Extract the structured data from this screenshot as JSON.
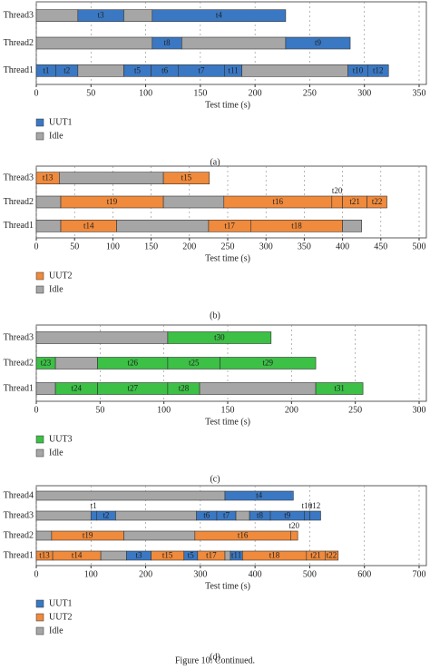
{
  "chart_data": [
    {
      "type": "gantt",
      "x_label": "Test time (s)",
      "caption": "(a)",
      "grid": true,
      "xlim": [
        0,
        350
      ],
      "xticks": [
        0,
        50,
        100,
        150,
        200,
        250,
        300,
        350
      ],
      "categories": [
        "Thread3",
        "Thread2",
        "Thread1"
      ],
      "series": [
        {
          "name": "UUT1",
          "color": "#3a78c3"
        },
        {
          "name": "Idle",
          "color": "#a6a6a6"
        }
      ],
      "tasks": [
        [
          {
            "start": 0,
            "end": 38,
            "series": 1
          },
          {
            "start": 38,
            "end": 80,
            "series": 0,
            "label": "t3"
          },
          {
            "start": 80,
            "end": 106,
            "series": 1
          },
          {
            "start": 106,
            "end": 228,
            "series": 0,
            "label": "t4"
          }
        ],
        [
          {
            "start": 0,
            "end": 106,
            "series": 1
          },
          {
            "start": 106,
            "end": 133,
            "series": 0,
            "label": "t8"
          },
          {
            "start": 133,
            "end": 228,
            "series": 1
          },
          {
            "start": 228,
            "end": 287,
            "series": 0,
            "label": "t9"
          }
        ],
        [
          {
            "start": 0,
            "end": 18,
            "series": 0,
            "label": "t1"
          },
          {
            "start": 18,
            "end": 38,
            "series": 0,
            "label": "t2"
          },
          {
            "start": 38,
            "end": 80,
            "series": 1
          },
          {
            "start": 80,
            "end": 105,
            "series": 0,
            "label": "t5"
          },
          {
            "start": 105,
            "end": 130,
            "series": 0,
            "label": "t6"
          },
          {
            "start": 130,
            "end": 172,
            "series": 0,
            "label": "t7"
          },
          {
            "start": 172,
            "end": 188,
            "series": 0,
            "label": "t11"
          },
          {
            "start": 188,
            "end": 285,
            "series": 1
          },
          {
            "start": 285,
            "end": 303,
            "series": 0,
            "label": "t10"
          },
          {
            "start": 303,
            "end": 322,
            "series": 0,
            "label": "t12"
          }
        ]
      ]
    },
    {
      "type": "gantt",
      "x_label": "Test time (s)",
      "caption": "(b)",
      "grid": true,
      "xlim": [
        0,
        500
      ],
      "xticks": [
        0,
        50,
        100,
        150,
        200,
        250,
        300,
        350,
        400,
        450,
        500
      ],
      "categories": [
        "Thread3",
        "Thread2",
        "Thread1"
      ],
      "series": [
        {
          "name": "UUT2",
          "color": "#f08a3c"
        },
        {
          "name": "Idle",
          "color": "#a6a6a6"
        }
      ],
      "tasks": [
        [
          {
            "start": 0,
            "end": 30,
            "series": 0,
            "label": "t13"
          },
          {
            "start": 30,
            "end": 166,
            "series": 1
          },
          {
            "start": 166,
            "end": 226,
            "series": 0,
            "label": "t15"
          }
        ],
        [
          {
            "start": 0,
            "end": 32,
            "series": 1
          },
          {
            "start": 32,
            "end": 166,
            "series": 0,
            "label": "t19"
          },
          {
            "start": 166,
            "end": 245,
            "series": 1
          },
          {
            "start": 245,
            "end": 386,
            "series": 0,
            "label": "t16"
          },
          {
            "start": 386,
            "end": 400,
            "series": 0,
            "label": "t20"
          },
          {
            "start": 400,
            "end": 432,
            "series": 0,
            "label": "t21"
          },
          {
            "start": 432,
            "end": 458,
            "series": 0,
            "label": "t22"
          }
        ],
        [
          {
            "start": 0,
            "end": 32,
            "series": 1
          },
          {
            "start": 32,
            "end": 105,
            "series": 0,
            "label": "t14"
          },
          {
            "start": 105,
            "end": 225,
            "series": 1
          },
          {
            "start": 225,
            "end": 280,
            "series": 0,
            "label": "t17"
          },
          {
            "start": 280,
            "end": 400,
            "series": 0,
            "label": "t18"
          },
          {
            "start": 400,
            "end": 425,
            "series": 1
          }
        ]
      ]
    },
    {
      "type": "gantt",
      "x_label": "Test time (s)",
      "caption": "(c)",
      "grid": true,
      "xlim": [
        0,
        300
      ],
      "xticks": [
        0,
        50,
        100,
        150,
        200,
        250,
        300
      ],
      "categories": [
        "Thread3",
        "Thread2",
        "Thread1"
      ],
      "series": [
        {
          "name": "UUT3",
          "color": "#3cc046"
        },
        {
          "name": "Idle",
          "color": "#a6a6a6"
        }
      ],
      "tasks": [
        [
          {
            "start": 0,
            "end": 103,
            "series": 1
          },
          {
            "start": 103,
            "end": 184,
            "series": 0,
            "label": "t30"
          }
        ],
        [
          {
            "start": 0,
            "end": 15,
            "series": 0,
            "label": "t23"
          },
          {
            "start": 15,
            "end": 48,
            "series": 1
          },
          {
            "start": 48,
            "end": 103,
            "series": 0,
            "label": "t26"
          },
          {
            "start": 103,
            "end": 144,
            "series": 0,
            "label": "t25"
          },
          {
            "start": 144,
            "end": 219,
            "series": 0,
            "label": "t29"
          }
        ],
        [
          {
            "start": 0,
            "end": 15,
            "series": 1
          },
          {
            "start": 15,
            "end": 48,
            "series": 0,
            "label": "t24"
          },
          {
            "start": 48,
            "end": 103,
            "series": 0,
            "label": "t27"
          },
          {
            "start": 103,
            "end": 128,
            "series": 0,
            "label": "t28"
          },
          {
            "start": 128,
            "end": 219,
            "series": 1
          },
          {
            "start": 219,
            "end": 256,
            "series": 0,
            "label": "t31"
          }
        ]
      ]
    },
    {
      "type": "gantt",
      "x_label": "Test time (s)",
      "caption": "(d)",
      "grid": true,
      "xlim": [
        0,
        700
      ],
      "xticks": [
        0,
        100,
        200,
        300,
        400,
        500,
        600,
        700
      ],
      "categories": [
        "Thread4",
        "Thread3",
        "Thread2",
        "Thread1"
      ],
      "series": [
        {
          "name": "UUT1",
          "color": "#3a78c3"
        },
        {
          "name": "UUT2",
          "color": "#f08a3c"
        },
        {
          "name": "Idle",
          "color": "#a6a6a6"
        }
      ],
      "tasks": [
        [
          {
            "start": 0,
            "end": 345,
            "series": 2
          },
          {
            "start": 345,
            "end": 470,
            "series": 0,
            "label": "t4"
          }
        ],
        [
          {
            "start": 0,
            "end": 100,
            "series": 2
          },
          {
            "start": 100,
            "end": 110,
            "series": 0,
            "label": "t1"
          },
          {
            "start": 110,
            "end": 145,
            "series": 0,
            "label": "t2"
          },
          {
            "start": 145,
            "end": 293,
            "series": 2
          },
          {
            "start": 293,
            "end": 330,
            "series": 0,
            "label": "t6"
          },
          {
            "start": 330,
            "end": 365,
            "series": 0,
            "label": "t7"
          },
          {
            "start": 365,
            "end": 390,
            "series": 2
          },
          {
            "start": 390,
            "end": 428,
            "series": 0,
            "label": "t8"
          },
          {
            "start": 428,
            "end": 490,
            "series": 0,
            "label": "t9"
          },
          {
            "start": 490,
            "end": 500,
            "series": 0,
            "label": "t10"
          },
          {
            "start": 500,
            "end": 520,
            "series": 0,
            "label": "t12"
          }
        ],
        [
          {
            "start": 0,
            "end": 28,
            "series": 2
          },
          {
            "start": 28,
            "end": 160,
            "series": 1,
            "label": "t19"
          },
          {
            "start": 160,
            "end": 290,
            "series": 2
          },
          {
            "start": 290,
            "end": 465,
            "series": 1,
            "label": "t16"
          },
          {
            "start": 465,
            "end": 478,
            "series": 1,
            "label": "t20"
          }
        ],
        [
          {
            "start": 0,
            "end": 30,
            "series": 1,
            "label": "t13"
          },
          {
            "start": 30,
            "end": 118,
            "series": 1,
            "label": "t14"
          },
          {
            "start": 118,
            "end": 165,
            "series": 2
          },
          {
            "start": 165,
            "end": 210,
            "series": 0,
            "label": "t3"
          },
          {
            "start": 210,
            "end": 270,
            "series": 1,
            "label": "t15"
          },
          {
            "start": 270,
            "end": 295,
            "series": 0,
            "label": "t5"
          },
          {
            "start": 295,
            "end": 345,
            "series": 1,
            "label": "t17"
          },
          {
            "start": 345,
            "end": 355,
            "series": 2
          },
          {
            "start": 355,
            "end": 377,
            "series": 0,
            "label": "t11"
          },
          {
            "start": 377,
            "end": 494,
            "series": 1,
            "label": "t18"
          },
          {
            "start": 494,
            "end": 528,
            "series": 1,
            "label": "t21"
          },
          {
            "start": 528,
            "end": 552,
            "series": 1,
            "label": "t22"
          }
        ]
      ]
    }
  ],
  "figure_caption": "Figure 10: Continued."
}
